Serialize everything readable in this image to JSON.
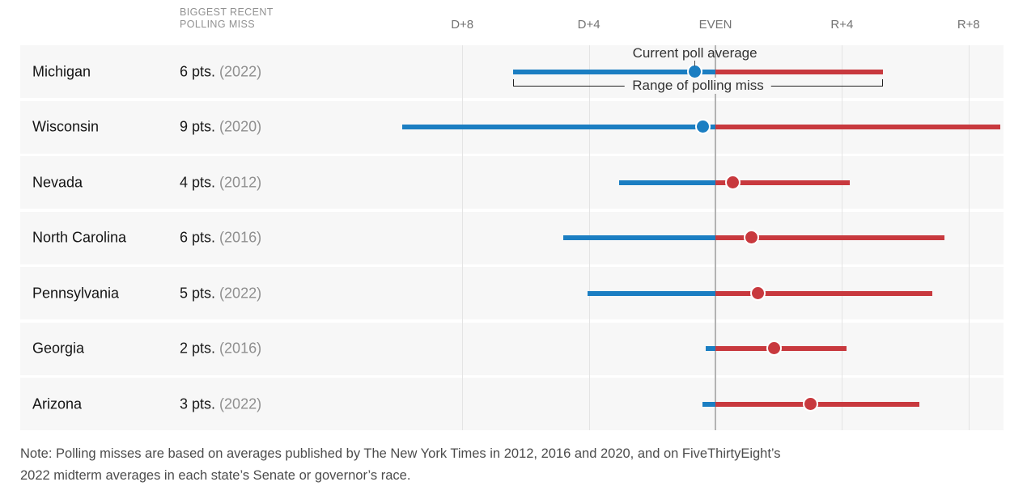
{
  "colors": {
    "dem": "#1b7ec2",
    "rep": "#c8393e",
    "band_background": "#f7f7f7",
    "gridline": "#e4e4e4",
    "even_gridline": "#b3b3b3"
  },
  "header": {
    "miss_col_line1": "BIGGEST RECENT",
    "miss_col_line2": "POLLING MISS"
  },
  "axis": {
    "ticks": [
      {
        "label": "D+8",
        "value": -8
      },
      {
        "label": "D+4",
        "value": -4
      },
      {
        "label": "EVEN",
        "value": 0
      },
      {
        "label": "R+4",
        "value": 4
      },
      {
        "label": "R+8",
        "value": 8
      }
    ]
  },
  "annotations": {
    "current_poll_average": "Current poll average",
    "range_of_polling_miss": "Range of polling miss"
  },
  "chart_data": {
    "type": "dot-range",
    "unit": "percentage points (negative = Democratic lead, positive = Republican lead)",
    "xlim": [
      -10,
      9.2
    ],
    "rows": [
      {
        "state": "Michigan",
        "miss": "6 pts.",
        "miss_year": "(2022)",
        "range_d": -6.4,
        "range_r": 5.3,
        "poll_avg": -0.65
      },
      {
        "state": "Wisconsin",
        "miss": "9 pts.",
        "miss_year": "(2020)",
        "range_d": -9.9,
        "range_r": 9.0,
        "poll_avg": -0.4
      },
      {
        "state": "Nevada",
        "miss": "4 pts.",
        "miss_year": "(2012)",
        "range_d": -3.05,
        "range_r": 4.25,
        "poll_avg": 0.55
      },
      {
        "state": "North Carolina",
        "miss": "6 pts.",
        "miss_year": "(2016)",
        "range_d": -4.8,
        "range_r": 7.25,
        "poll_avg": 1.15
      },
      {
        "state": "Pennsylvania",
        "miss": "5 pts.",
        "miss_year": "(2022)",
        "range_d": -4.05,
        "range_r": 6.85,
        "poll_avg": 1.35
      },
      {
        "state": "Georgia",
        "miss": "2 pts.",
        "miss_year": "(2016)",
        "range_d": -0.3,
        "range_r": 4.15,
        "poll_avg": 1.85
      },
      {
        "state": "Arizona",
        "miss": "3 pts.",
        "miss_year": "(2022)",
        "range_d": -0.4,
        "range_r": 6.45,
        "poll_avg": 3.0
      }
    ]
  },
  "note": {
    "text": "Note: Polling misses are based on averages published by The New York Times in 2012, 2016 and 2020, and on FiveThirtyEight’s 2022 midterm averages in each state’s Senate or governor’s race."
  }
}
